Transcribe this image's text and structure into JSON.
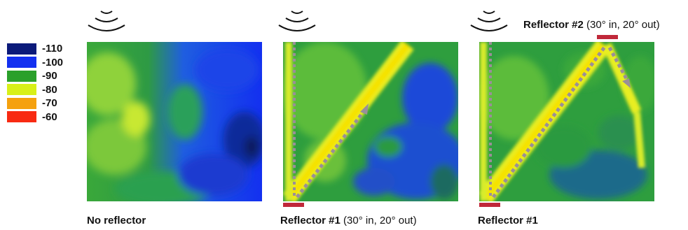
{
  "legend": {
    "items": [
      {
        "label": "-110",
        "color": "#0b1a7a"
      },
      {
        "label": "-100",
        "color": "#1330f0"
      },
      {
        "label": "-90",
        "color": "#2aa02a"
      },
      {
        "label": "-80",
        "color": "#d8f018"
      },
      {
        "label": "-70",
        "color": "#f5a10e"
      },
      {
        "label": "-60",
        "color": "#f82a12"
      }
    ]
  },
  "panels": [
    {
      "caption_bold": "No reflector",
      "caption_rest": ""
    },
    {
      "caption_bold": "Reflector #1",
      "caption_rest": " (30° in, 20° out)"
    },
    {
      "caption_bold": "Reflector #1",
      "caption_rest": ""
    }
  ],
  "reflector2_label": {
    "bold": "Reflector #2",
    "rest": " (30° in, 20° out)"
  },
  "colors": {
    "reflector": "#c0283a",
    "path_arrow": "#9a8f98"
  }
}
